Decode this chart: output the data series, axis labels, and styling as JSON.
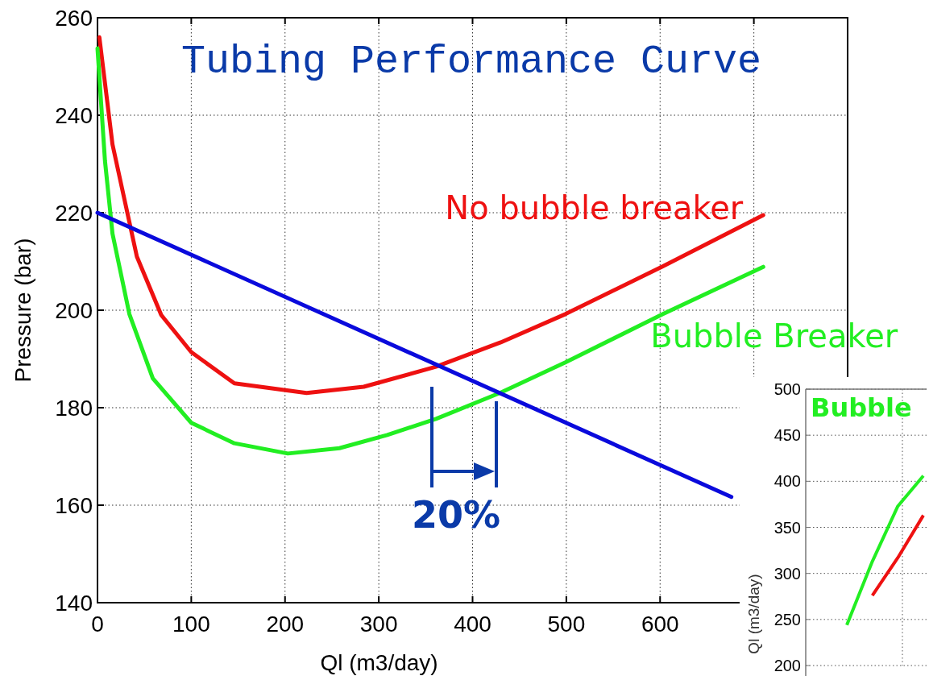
{
  "chart_data": [
    {
      "type": "line",
      "title": "Tubing Performance Curve",
      "xlabel": "Ql (m3/day)",
      "ylabel": "Pressure (bar)",
      "xlim": [
        0,
        800
      ],
      "xticks": [
        0,
        100,
        200,
        300,
        400,
        500,
        600,
        {
          "value": 700,
          "label": null
        }
      ],
      "ylim": [
        140,
        260
      ],
      "yticks": [
        140,
        160,
        180,
        200,
        220,
        240,
        260
      ],
      "grid": true,
      "series": [
        {
          "name": "No bubble breaker",
          "color": "#ee1111",
          "x": [
            2,
            16,
            42,
            68,
            100,
            146,
            223,
            284,
            361,
            430,
            499,
            603,
            710
          ],
          "values": [
            256,
            234,
            211,
            199,
            191.4,
            185,
            183,
            184.3,
            188.4,
            193.4,
            199.2,
            209,
            219.5
          ]
        },
        {
          "name": "Bubble Breaker",
          "color": "#22ee22",
          "x": [
            0,
            8,
            16,
            34,
            59,
            100,
            146,
            203,
            258,
            309,
            361,
            430,
            499,
            603,
            710
          ],
          "values": [
            253.7,
            230.6,
            215.7,
            199.2,
            186,
            176.9,
            172.7,
            170.6,
            171.7,
            174.4,
            177.7,
            183.1,
            189.3,
            199.2,
            208.9
          ]
        },
        {
          "color": "#0a0adc",
          "x": [
            0,
            676
          ],
          "values": [
            220,
            161.7
          ]
        }
      ],
      "annotations": [
        "20%"
      ]
    },
    {
      "type": "line",
      "ylabel": "Ql (m3/day)",
      "categories": [
        null,
        null,
        null,
        null
      ],
      "ylim": [
        200,
        500
      ],
      "yticks": [
        200,
        250,
        300,
        350,
        400,
        450,
        500
      ],
      "grid": true,
      "series": [
        {
          "color": "#22ee22",
          "values": [
            244,
            313,
            373,
            406
          ]
        },
        {
          "color": "#ee1111",
          "values": [
            null,
            276,
            317,
            363
          ]
        }
      ],
      "annotations": [
        "Bubble"
      ]
    }
  ]
}
